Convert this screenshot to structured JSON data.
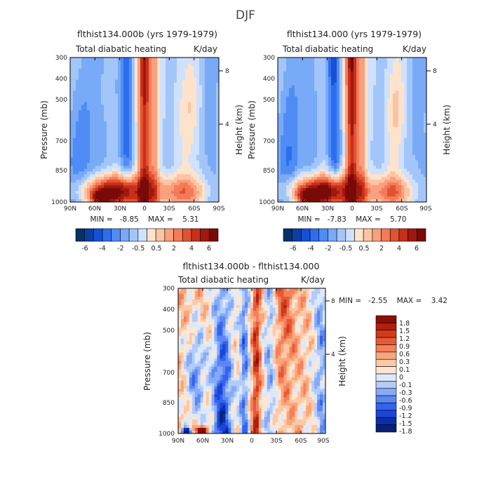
{
  "figure_title": "DJF",
  "colors": {
    "full": [
      "#08306b",
      "#0a3fa3",
      "#1551d6",
      "#2d6ef0",
      "#4f8cf5",
      "#78aaf7",
      "#a3c6fa",
      "#cfe1fc",
      "#fde3cc",
      "#fcc4a3",
      "#f9a07c",
      "#f47b5a",
      "#e2522f",
      "#c7301a",
      "#a0180f",
      "#7a0a08"
    ],
    "diff": [
      "#08207a",
      "#0b2fa8",
      "#1a45d8",
      "#3363ef",
      "#5a88f4",
      "#86aaf6",
      "#b2cbf9",
      "#dce9fc",
      "#fde7d3",
      "#fcc9a8",
      "#f9a67d",
      "#f4815a",
      "#e85a34",
      "#d03a1b",
      "#b0200c",
      "#8c0d06"
    ]
  },
  "chart_data": [
    {
      "type": "heatmap",
      "title": "flthist134.000b (yrs 1979-1979)",
      "subtitle_left": "Total diabatic heating",
      "subtitle_right": "K/day",
      "ylabel": "Pressure (mb)",
      "y2label": "Height (km)",
      "xticks": [
        "90N",
        "60N",
        "30N",
        "0",
        "30S",
        "60S",
        "90S"
      ],
      "yticks": [
        "300",
        "400",
        "500",
        "700",
        "850",
        "1000"
      ],
      "y2ticks": [
        "8",
        "4"
      ],
      "stats_text": "MIN =   -8.85    MAX =    5.31",
      "min": -8.85,
      "max": 5.31,
      "colorbar_labels": [
        "-6",
        "-4",
        "-2",
        "-0.5",
        "0.5",
        "2",
        "4",
        "6"
      ]
    },
    {
      "type": "heatmap",
      "title": "flthist134.000 (yrs 1979-1979)",
      "subtitle_left": "Total diabatic heating",
      "subtitle_right": "K/day",
      "ylabel": "Pressure (mb)",
      "y2label": "Height (km)",
      "xticks": [
        "90N",
        "60N",
        "30N",
        "0",
        "30S",
        "60S",
        "90S"
      ],
      "yticks": [
        "300",
        "400",
        "500",
        "700",
        "850",
        "1000"
      ],
      "y2ticks": [
        "8",
        "4"
      ],
      "stats_text": "MIN =   -7.83    MAX =    5.70",
      "min": -7.83,
      "max": 5.7,
      "colorbar_labels": [
        "-6",
        "-4",
        "-2",
        "-0.5",
        "0.5",
        "2",
        "4",
        "6"
      ]
    },
    {
      "type": "heatmap",
      "title": "flthist134.000b - flthist134.000",
      "subtitle_left": "Total diabatic heating",
      "subtitle_right": "K/day",
      "ylabel": "Pressure (mb)",
      "y2label": "Height (km)",
      "xticks": [
        "90N",
        "60N",
        "30N",
        "0",
        "30S",
        "60S",
        "90S"
      ],
      "yticks": [
        "300",
        "400",
        "500",
        "700",
        "850",
        "1000"
      ],
      "y2ticks": [
        "8",
        "4"
      ],
      "stats_text": "MIN =   -2.55    MAX =    3.42",
      "min": -2.55,
      "max": 3.42,
      "colorbar_labels": [
        "1.8",
        "1.5",
        "1.2",
        "0.9",
        "0.6",
        "0.3",
        "0.1",
        "0",
        "-0.1",
        "-0.3",
        "-0.6",
        "-0.9",
        "-1.2",
        "-1.5",
        "-1.8"
      ]
    }
  ]
}
